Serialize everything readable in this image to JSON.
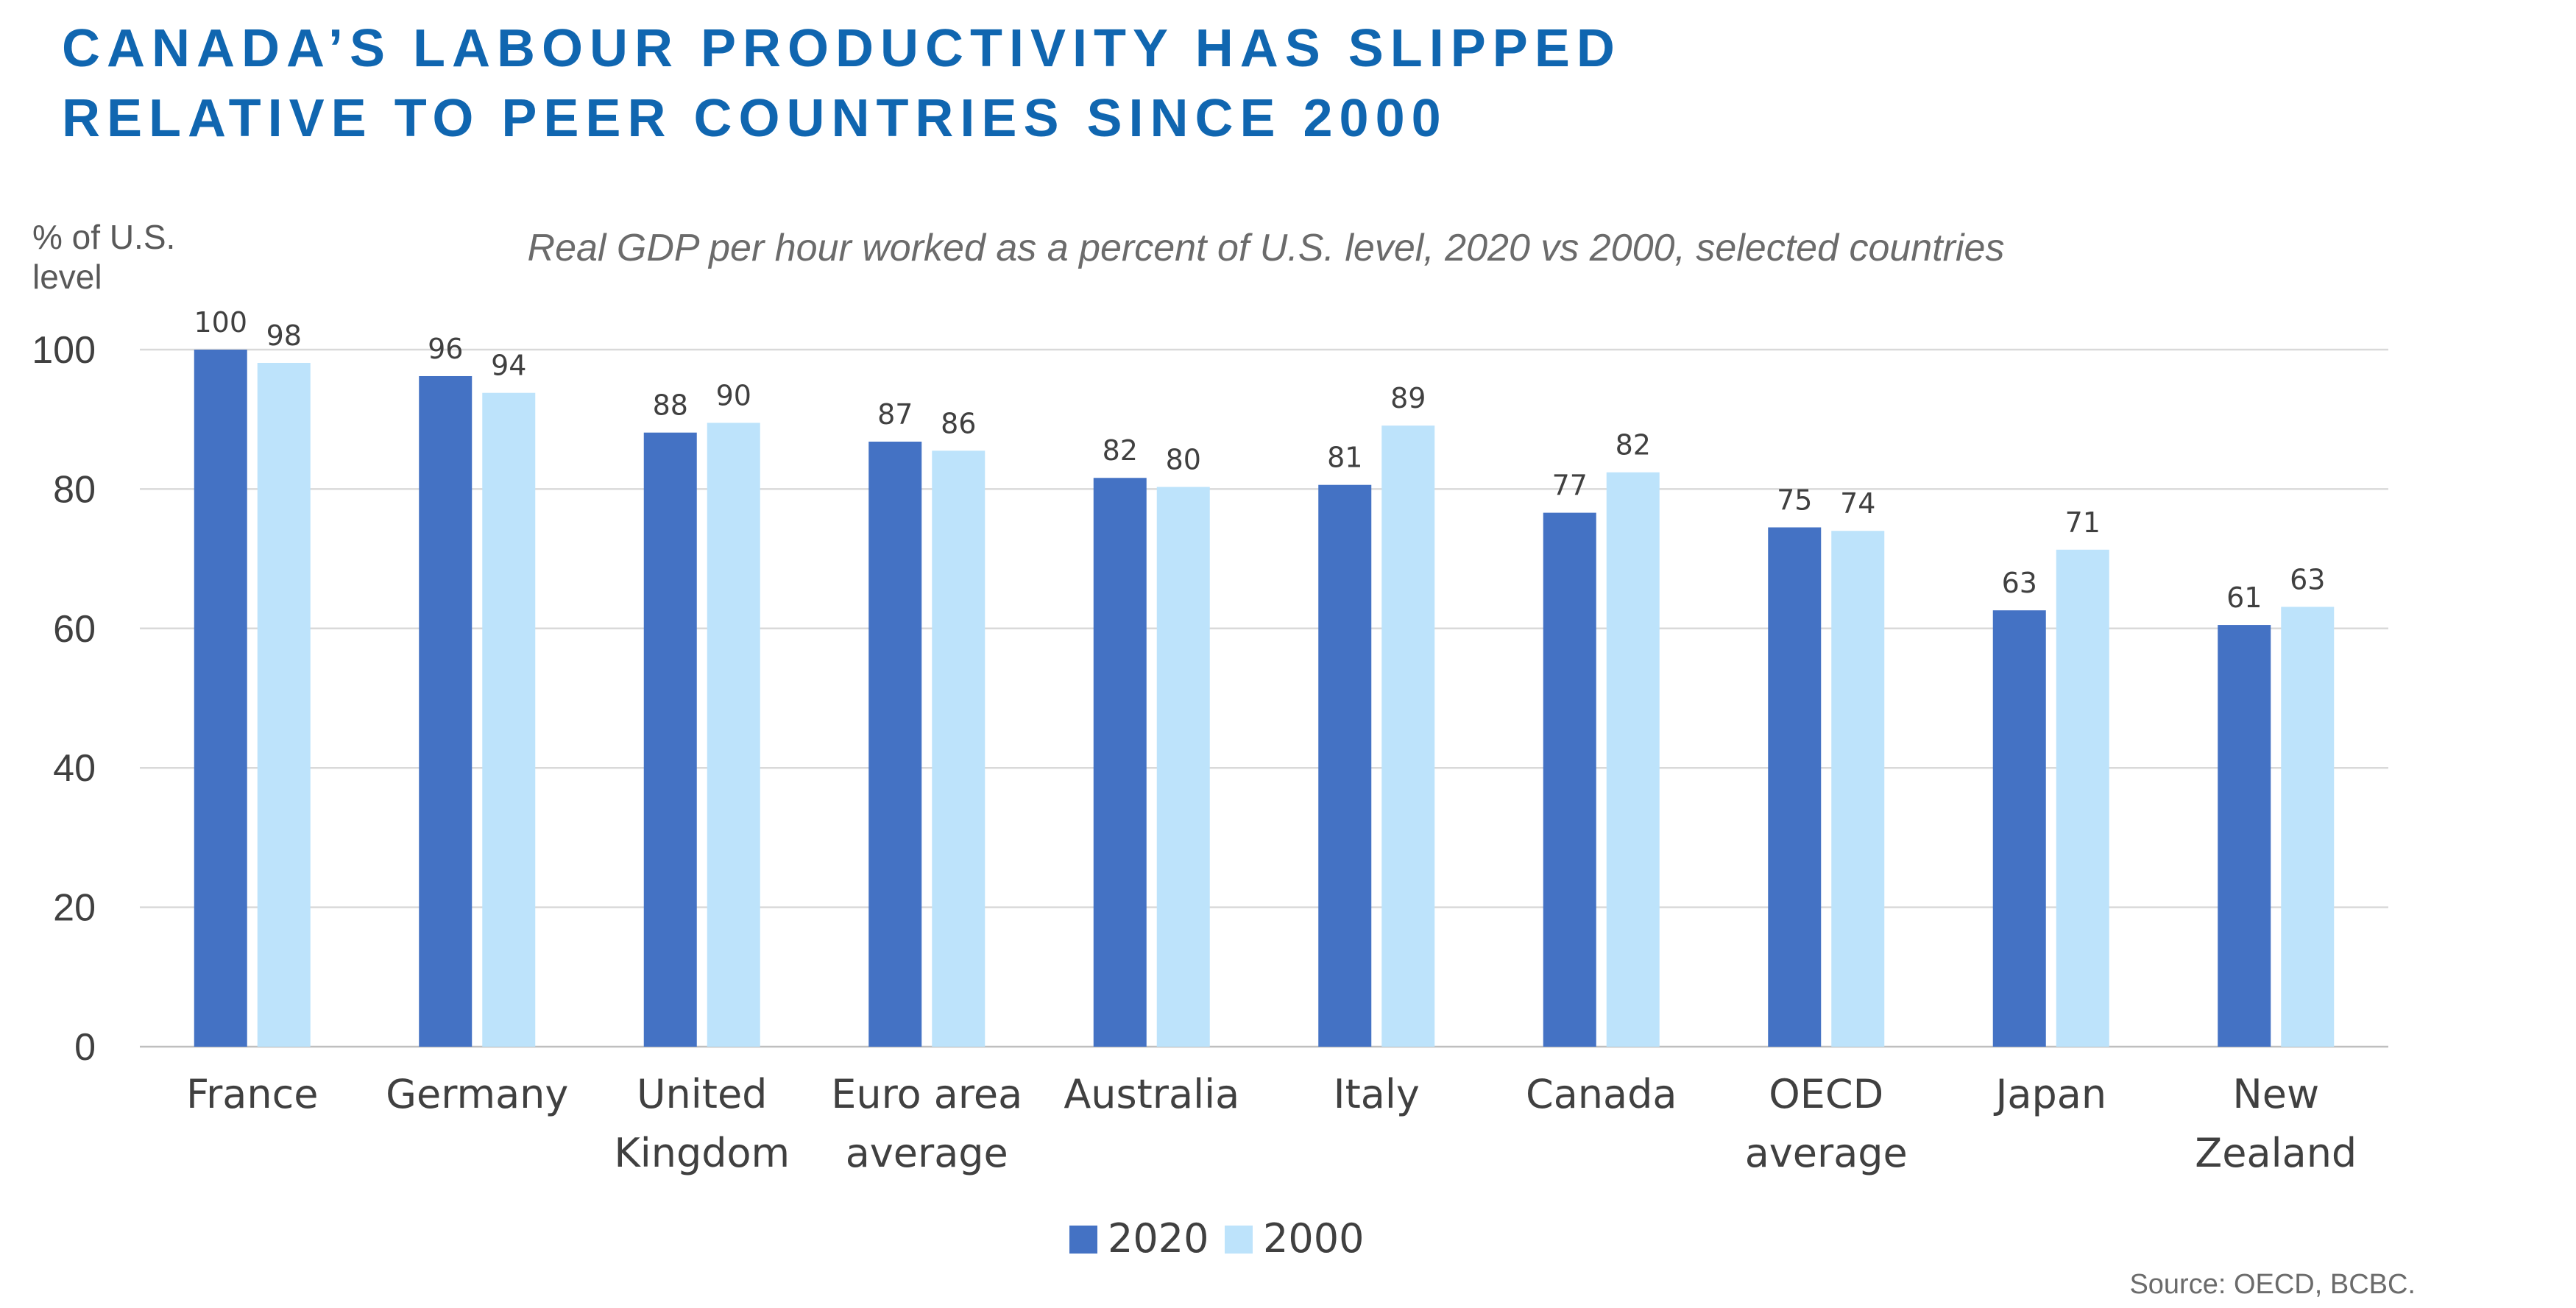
{
  "title_lines": [
    "CANADA’S LABOUR PRODUCTIVITY HAS SLIPPED",
    "RELATIVE TO PEER COUNTRIES SINCE 2000"
  ],
  "subtitle": "Real GDP per hour worked as a percent of U.S. level, 2020 vs 2000, selected countries",
  "source": "Source: OECD, BCBC.",
  "colors": {
    "title": "#1066b0",
    "series_2020": "#4472c4",
    "series_2000": "#bde3fb"
  },
  "chart_data": {
    "type": "bar",
    "title": "CANADA’S LABOUR PRODUCTIVITY HAS SLIPPED RELATIVE TO PEER COUNTRIES SINCE 2000",
    "subtitle": "Real GDP per hour worked as a percent of U.S. level, 2020 vs 2000, selected countries",
    "ylabel_lines": [
      "% of U.S.",
      "level"
    ],
    "xlabel": "",
    "ylim": [
      0,
      100
    ],
    "yticks": [
      0,
      20,
      40,
      60,
      80,
      100
    ],
    "grid": true,
    "legend_position": "bottom",
    "categories": [
      [
        "France"
      ],
      [
        "Germany"
      ],
      [
        "United",
        "Kingdom"
      ],
      [
        "Euro area",
        "average"
      ],
      [
        "Australia"
      ],
      [
        "Italy"
      ],
      [
        "Canada"
      ],
      [
        "OECD",
        "average"
      ],
      [
        "Japan"
      ],
      [
        "New",
        "Zealand"
      ]
    ],
    "series": [
      {
        "name": "2020",
        "values": [
          100,
          96.2,
          88.1,
          86.8,
          81.6,
          80.6,
          76.6,
          74.5,
          62.6,
          60.5
        ],
        "labels": [
          "100",
          "96",
          "88",
          "87",
          "82",
          "81",
          "77",
          "75",
          "63",
          "61"
        ]
      },
      {
        "name": "2000",
        "values": [
          98.1,
          93.8,
          89.5,
          85.5,
          80.3,
          89.1,
          82.4,
          74.0,
          71.3,
          63.1
        ],
        "labels": [
          "98",
          "94",
          "90",
          "86",
          "80",
          "89",
          "82",
          "74",
          "71",
          "63"
        ]
      }
    ]
  }
}
